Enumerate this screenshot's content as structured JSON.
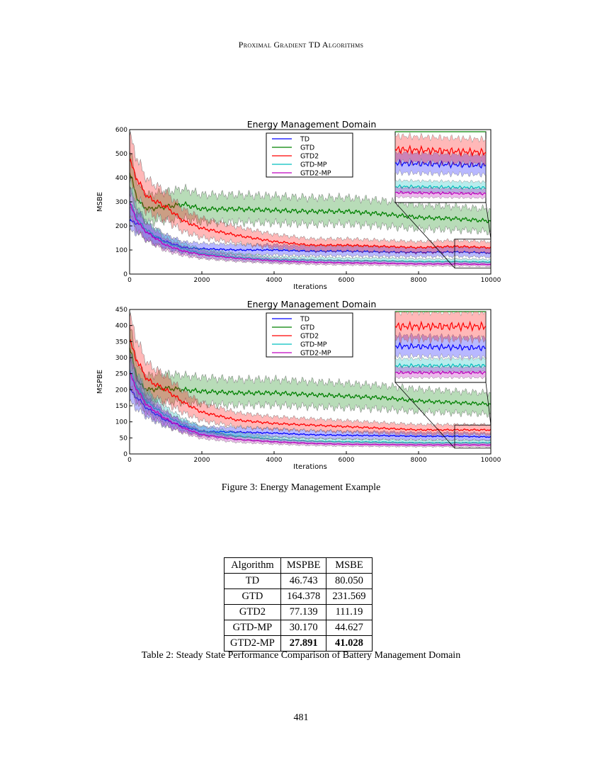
{
  "header": "Proximal Gradient TD Algorithms",
  "figure_caption": "Figure 3: Energy Management Example",
  "table": {
    "headers": [
      "Algorithm",
      "MSPBE",
      "MSBE"
    ],
    "rows": [
      [
        "TD",
        "46.743",
        "80.050"
      ],
      [
        "GTD",
        "164.378",
        "231.569"
      ],
      [
        "GTD2",
        "77.139",
        "111.19"
      ],
      [
        "GTD-MP",
        "30.170",
        "44.627"
      ],
      [
        "GTD2-MP",
        "27.891",
        "41.028"
      ]
    ],
    "bold_row": 4
  },
  "table_caption": "Table 2: Steady State Performance Comparison of Battery Management Domain",
  "page_number": "481",
  "chart_data": [
    {
      "type": "line",
      "title": "Energy Management Domain",
      "xlabel": "Iterations",
      "ylabel": "MSBE",
      "xlim": [
        0,
        10000
      ],
      "ylim": [
        0,
        600
      ],
      "xticks": [
        0,
        2000,
        4000,
        6000,
        8000,
        10000
      ],
      "yticks": [
        0,
        100,
        200,
        300,
        400,
        500,
        600
      ],
      "legend_position": "top-center",
      "grid": false,
      "inset": {
        "xlim": [
          9000,
          10000
        ],
        "ylim": [
          25,
          145
        ]
      },
      "x": [
        0,
        250,
        500,
        1000,
        1500,
        2000,
        3000,
        4000,
        5000,
        6000,
        7000,
        8000,
        9000,
        10000
      ],
      "series": [
        {
          "name": "TD",
          "color": "#0000ff",
          "values": [
            220,
            210,
            170,
            135,
            110,
            105,
            100,
            100,
            95,
            95,
            92,
            90,
            92,
            88
          ]
        },
        {
          "name": "GTD",
          "color": "#008000",
          "values": [
            420,
            300,
            270,
            280,
            290,
            270,
            270,
            265,
            260,
            260,
            250,
            235,
            230,
            220
          ]
        },
        {
          "name": "GTD2",
          "color": "#ff0000",
          "values": [
            470,
            380,
            320,
            280,
            220,
            190,
            160,
            135,
            120,
            120,
            115,
            110,
            115,
            110
          ]
        },
        {
          "name": "GTD-MP",
          "color": "#00bfbf",
          "values": [
            300,
            220,
            180,
            130,
            105,
            85,
            70,
            60,
            58,
            55,
            55,
            52,
            52,
            50
          ]
        },
        {
          "name": "GTD2-MP",
          "color": "#bf00bf",
          "values": [
            290,
            210,
            170,
            120,
            95,
            80,
            65,
            55,
            50,
            47,
            45,
            42,
            42,
            40
          ]
        }
      ]
    },
    {
      "type": "line",
      "title": "Energy Management Domain",
      "xlabel": "Iterations",
      "ylabel": "MSPBE",
      "xlim": [
        0,
        10000
      ],
      "ylim": [
        0,
        450
      ],
      "xticks": [
        0,
        2000,
        4000,
        6000,
        8000,
        10000
      ],
      "yticks": [
        0,
        50,
        100,
        150,
        200,
        250,
        300,
        350,
        400,
        450
      ],
      "legend_position": "top-center",
      "grid": false,
      "inset": {
        "xlim": [
          9000,
          10000
        ],
        "ylim": [
          18,
          90
        ]
      },
      "x": [
        0,
        250,
        500,
        1000,
        1500,
        2000,
        3000,
        4000,
        5000,
        6000,
        7000,
        8000,
        9000,
        10000
      ],
      "series": [
        {
          "name": "TD",
          "color": "#0000ff",
          "values": [
            200,
            170,
            140,
            105,
            85,
            70,
            68,
            65,
            60,
            58,
            57,
            55,
            55,
            53
          ]
        },
        {
          "name": "GTD",
          "color": "#008000",
          "values": [
            330,
            220,
            200,
            205,
            200,
            195,
            190,
            190,
            185,
            180,
            175,
            165,
            160,
            155
          ]
        },
        {
          "name": "GTD2",
          "color": "#ff0000",
          "values": [
            350,
            280,
            230,
            200,
            160,
            130,
            105,
            95,
            90,
            85,
            80,
            75,
            75,
            75
          ]
        },
        {
          "name": "GTD-MP",
          "color": "#00bfbf",
          "values": [
            260,
            200,
            160,
            120,
            90,
            70,
            55,
            45,
            40,
            38,
            37,
            35,
            35,
            35
          ]
        },
        {
          "name": "GTD2-MP",
          "color": "#bf00bf",
          "values": [
            250,
            190,
            150,
            110,
            80,
            60,
            45,
            38,
            33,
            30,
            29,
            28,
            28,
            28
          ]
        }
      ]
    }
  ]
}
